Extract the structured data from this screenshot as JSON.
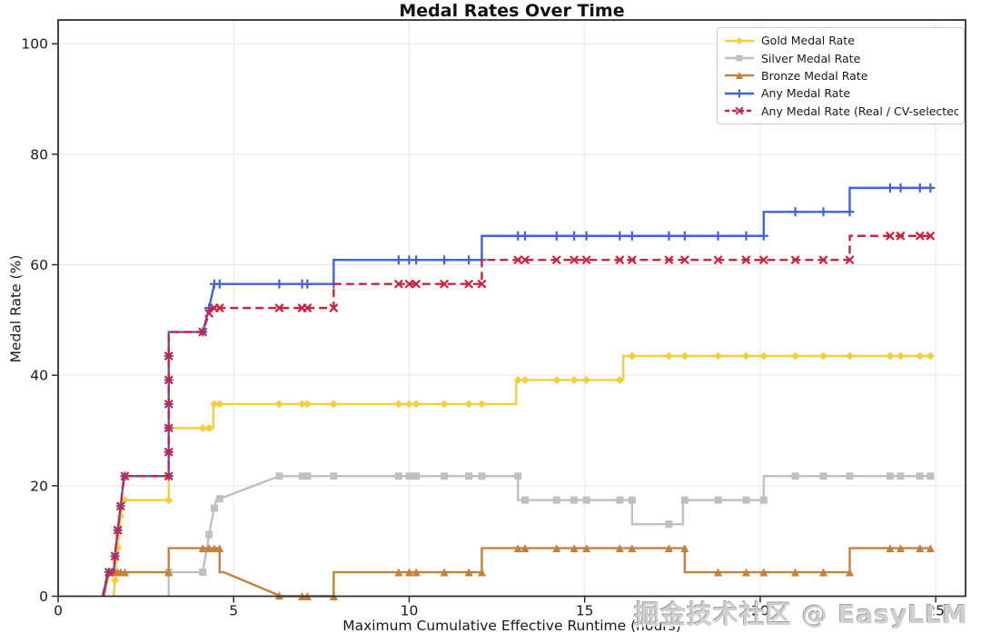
{
  "watermark": {
    "text": "掘金技术社区 @ EasyLLM"
  },
  "chart_data": {
    "type": "line",
    "title": "Medal Rates Over Time",
    "xlabel": "Maximum Cumulative Effective Runtime (hours)",
    "ylabel": "Medal Rate (%)",
    "xlim": [
      0,
      25.85
    ],
    "ylim": [
      0,
      104.3
    ],
    "xticks": [
      0,
      5,
      10,
      15,
      20,
      25
    ],
    "yticks": [
      0,
      20,
      40,
      60,
      80,
      100
    ],
    "grid": true,
    "grid_color": "#e8e8e8",
    "spine_color": "#2f2f2f",
    "legend_position": "upper right",
    "marker_hours": [
      1.45,
      1.62,
      1.7,
      1.78,
      1.9,
      3.15,
      4.12,
      4.3,
      4.45,
      4.6,
      6.3,
      6.95,
      7.1,
      7.85,
      9.7,
      10.0,
      10.2,
      11.0,
      11.7,
      12.07,
      13.1,
      13.3,
      14.2,
      14.7,
      15.05,
      16.0,
      16.35,
      17.4,
      17.85,
      18.8,
      19.6,
      20.1,
      21.0,
      21.8,
      22.55,
      23.7,
      24.0,
      24.55,
      24.85
    ],
    "series": [
      {
        "name": "Gold Medal Rate",
        "color": "#f4ce3c",
        "marker": "diamond",
        "dash": null,
        "start": 1.58,
        "points": [
          [
            1.58,
            0
          ],
          [
            1.64,
            4.35
          ],
          [
            1.7,
            8.7
          ],
          [
            1.76,
            13.04
          ],
          [
            1.82,
            17.39
          ],
          [
            3.15,
            17.39
          ],
          [
            3.15,
            30.43
          ],
          [
            4.42,
            30.43
          ],
          [
            4.42,
            34.78
          ],
          [
            13.05,
            34.78
          ],
          [
            13.05,
            39.13
          ],
          [
            16.1,
            39.13
          ],
          [
            16.1,
            43.48
          ],
          [
            24.85,
            43.48
          ]
        ],
        "extra_markers": []
      },
      {
        "name": "Silver Medal Rate",
        "color": "#c0c0c0",
        "marker": "square",
        "dash": null,
        "start": 3.15,
        "points": [
          [
            3.15,
            0
          ],
          [
            3.15,
            4.35
          ],
          [
            4.12,
            4.35
          ],
          [
            4.35,
            13.04
          ],
          [
            4.5,
            17.39
          ],
          [
            6.3,
            21.74
          ],
          [
            13.1,
            21.74
          ],
          [
            13.1,
            17.39
          ],
          [
            16.35,
            17.39
          ],
          [
            16.35,
            13.04
          ],
          [
            17.8,
            13.04
          ],
          [
            17.8,
            17.39
          ],
          [
            20.1,
            17.39
          ],
          [
            20.1,
            21.74
          ],
          [
            24.85,
            21.74
          ]
        ],
        "extra_markers": []
      },
      {
        "name": "Bronze Medal Rate",
        "color": "#c5803a",
        "marker": "triangle",
        "dash": null,
        "start": 1.3,
        "points": [
          [
            1.3,
            0
          ],
          [
            1.45,
            4.35
          ],
          [
            3.15,
            4.35
          ],
          [
            3.15,
            8.7
          ],
          [
            4.6,
            8.7
          ],
          [
            4.6,
            4.35
          ],
          [
            4.72,
            4.35
          ],
          [
            6.35,
            0
          ],
          [
            7.85,
            0
          ],
          [
            7.85,
            4.35
          ],
          [
            12.07,
            4.35
          ],
          [
            12.07,
            8.7
          ],
          [
            17.85,
            8.7
          ],
          [
            17.85,
            4.35
          ],
          [
            22.55,
            4.35
          ],
          [
            22.55,
            8.7
          ],
          [
            24.85,
            8.7
          ]
        ],
        "extra_markers": []
      },
      {
        "name": "Any Medal Rate",
        "color": "#3e63dc",
        "marker": "plus",
        "dash": null,
        "start": 1.27,
        "points": [
          [
            1.27,
            0
          ],
          [
            1.42,
            4.35
          ],
          [
            1.58,
            4.35
          ],
          [
            1.64,
            8.7
          ],
          [
            1.72,
            13.04
          ],
          [
            1.8,
            17.39
          ],
          [
            1.88,
            21.74
          ],
          [
            3.15,
            21.74
          ],
          [
            3.15,
            47.83
          ],
          [
            4.12,
            47.83
          ],
          [
            4.3,
            52.17
          ],
          [
            4.45,
            56.52
          ],
          [
            7.85,
            56.52
          ],
          [
            7.85,
            60.87
          ],
          [
            12.07,
            60.87
          ],
          [
            12.07,
            65.22
          ],
          [
            20.1,
            65.22
          ],
          [
            20.1,
            69.57
          ],
          [
            22.55,
            69.57
          ],
          [
            22.55,
            73.91
          ],
          [
            24.85,
            73.91
          ]
        ],
        "extra_markers": [
          [
            3.15,
            26.09
          ],
          [
            3.15,
            30.43
          ],
          [
            3.15,
            34.78
          ],
          [
            3.15,
            39.13
          ],
          [
            3.15,
            43.48
          ]
        ]
      },
      {
        "name": "Any Medal Rate (Real / CV-selected)",
        "color": "#ce2240",
        "marker": "x",
        "dash": [
          9,
          5
        ],
        "start": 1.27,
        "points": [
          [
            1.27,
            0
          ],
          [
            1.42,
            4.35
          ],
          [
            1.58,
            4.35
          ],
          [
            1.64,
            8.7
          ],
          [
            1.72,
            13.04
          ],
          [
            1.8,
            17.39
          ],
          [
            1.88,
            21.74
          ],
          [
            3.15,
            21.74
          ],
          [
            3.15,
            47.83
          ],
          [
            4.12,
            47.83
          ],
          [
            4.35,
            52.17
          ],
          [
            7.85,
            52.17
          ],
          [
            7.85,
            56.52
          ],
          [
            12.07,
            56.52
          ],
          [
            12.07,
            60.87
          ],
          [
            22.55,
            60.87
          ],
          [
            22.55,
            65.22
          ],
          [
            24.85,
            65.22
          ]
        ],
        "extra_markers": [
          [
            3.15,
            26.09
          ],
          [
            3.15,
            30.43
          ],
          [
            3.15,
            34.78
          ],
          [
            3.15,
            39.13
          ],
          [
            3.15,
            43.48
          ]
        ]
      }
    ]
  }
}
